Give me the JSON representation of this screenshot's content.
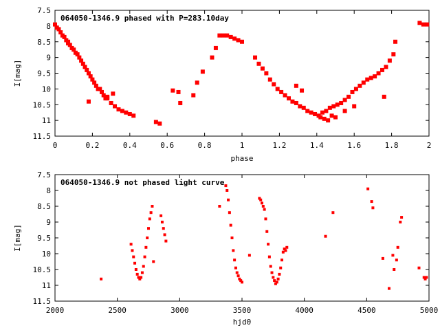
{
  "chart_data": [
    {
      "type": "scatter",
      "title": "064050-1346.9 phased with P=283.10day",
      "xlabel": "phase",
      "ylabel": "I[mag]",
      "xlim": [
        0,
        2
      ],
      "ylim": [
        11.5,
        7.5
      ],
      "y_reversed": true,
      "grid": false,
      "legend": "none",
      "marker_color": "#ff0000",
      "x_ticks": [
        "0",
        "0.2",
        "0.4",
        "0.6",
        "0.8",
        "1",
        "1.2",
        "1.4",
        "1.6",
        "1.8",
        "2"
      ],
      "y_ticks": [
        "7.5",
        "8",
        "8.5",
        "9",
        "9.5",
        "10",
        "10.5",
        "11",
        "11.5"
      ],
      "series": [
        {
          "x": [
            0.0,
            0.01,
            0.02,
            0.03,
            0.04,
            0.05,
            0.06,
            0.07,
            0.08,
            0.09,
            0.1,
            0.11,
            0.12,
            0.13,
            0.14,
            0.15,
            0.16,
            0.17,
            0.18,
            0.19,
            0.2,
            0.21,
            0.22,
            0.23,
            0.24,
            0.25,
            0.26,
            0.27,
            0.28,
            0.3,
            0.32,
            0.34,
            0.36,
            0.38,
            0.4,
            0.42,
            0.07,
            0.18,
            0.28,
            0.31,
            0.54,
            0.56,
            0.63,
            0.66,
            0.67,
            0.74,
            0.76,
            0.79,
            0.84,
            0.86,
            0.88,
            0.9,
            0.92,
            0.94,
            0.96,
            0.98,
            1.0,
            1.07,
            1.09,
            1.11,
            1.13,
            1.15,
            1.17,
            1.19,
            1.21,
            1.23,
            1.25,
            1.27,
            1.29,
            1.31,
            1.33,
            1.35,
            1.37,
            1.39,
            1.41,
            1.43,
            1.45,
            1.47,
            1.49,
            1.51,
            1.53,
            1.55,
            1.57,
            1.59,
            1.61,
            1.63,
            1.65,
            1.67,
            1.69,
            1.71,
            1.73,
            1.75,
            1.77,
            1.79,
            1.81,
            1.29,
            1.32,
            1.42,
            1.44,
            1.46,
            1.48,
            1.5,
            1.55,
            1.6,
            1.76,
            1.82,
            1.95,
            1.97,
            1.99
          ],
          "y": [
            7.95,
            8.05,
            8.1,
            8.2,
            8.3,
            8.35,
            8.45,
            8.5,
            8.6,
            8.7,
            8.75,
            8.85,
            8.9,
            9.0,
            9.1,
            9.2,
            9.3,
            9.4,
            9.5,
            9.6,
            9.7,
            9.8,
            9.9,
            10.0,
            10.0,
            10.1,
            10.2,
            10.3,
            10.3,
            10.45,
            10.55,
            10.65,
            10.7,
            10.75,
            10.8,
            10.85,
            8.55,
            10.4,
            10.25,
            10.15,
            11.05,
            11.1,
            10.05,
            10.1,
            10.45,
            10.2,
            9.8,
            9.45,
            9.0,
            8.7,
            8.3,
            8.3,
            8.3,
            8.35,
            8.4,
            8.45,
            8.5,
            9.0,
            9.2,
            9.35,
            9.5,
            9.7,
            9.85,
            10.0,
            10.1,
            10.2,
            10.3,
            10.4,
            10.45,
            10.55,
            10.6,
            10.7,
            10.75,
            10.8,
            10.85,
            10.75,
            10.7,
            10.6,
            10.55,
            10.5,
            10.45,
            10.35,
            10.25,
            10.1,
            10.0,
            9.9,
            9.8,
            9.7,
            9.65,
            9.6,
            9.5,
            9.4,
            9.3,
            9.1,
            8.9,
            9.9,
            10.05,
            10.9,
            10.95,
            11.0,
            10.85,
            10.9,
            10.7,
            10.55,
            10.25,
            8.5,
            7.9,
            7.95,
            7.95
          ]
        }
      ]
    },
    {
      "type": "scatter",
      "title": "064050-1346.9 not phased light curve",
      "xlabel": "hjd0",
      "ylabel": "I[mag]",
      "xlim": [
        2000,
        5000
      ],
      "ylim": [
        11.5,
        7.5
      ],
      "y_reversed": true,
      "grid": false,
      "legend": "none",
      "marker_color": "#ff0000",
      "x_ticks": [
        "2000",
        "2500",
        "3000",
        "3500",
        "4000",
        "4500",
        "5000"
      ],
      "y_ticks": [
        "7.5",
        "8",
        "8.5",
        "9",
        "9.5",
        "10",
        "10.5",
        "11",
        "11.5"
      ],
      "series": [
        {
          "x": [
            2370,
            2610,
            2620,
            2630,
            2640,
            2650,
            2660,
            2670,
            2680,
            2690,
            2700,
            2710,
            2720,
            2730,
            2740,
            2750,
            2760,
            2770,
            2780,
            2790,
            2850,
            2860,
            2870,
            2880,
            2890,
            3320,
            3370,
            3380,
            3390,
            3400,
            3410,
            3420,
            3430,
            3440,
            3450,
            3460,
            3470,
            3480,
            3490,
            3500,
            3560,
            3640,
            3650,
            3660,
            3670,
            3680,
            3690,
            3700,
            3710,
            3720,
            3730,
            3740,
            3750,
            3760,
            3770,
            3780,
            3790,
            3800,
            3810,
            3820,
            3830,
            3840,
            3850,
            3860,
            4170,
            4230,
            4510,
            4540,
            4550,
            4630,
            4680,
            4710,
            4720,
            4740,
            4750,
            4770,
            4780,
            4920,
            4960,
            4970,
            4980
          ],
          "y": [
            10.8,
            9.7,
            9.9,
            10.1,
            10.3,
            10.5,
            10.65,
            10.75,
            10.8,
            10.75,
            10.6,
            10.4,
            10.1,
            9.8,
            9.5,
            9.2,
            8.9,
            8.7,
            8.5,
            10.25,
            8.8,
            9.0,
            9.2,
            9.4,
            9.6,
            8.5,
            7.85,
            8.0,
            8.3,
            8.7,
            9.1,
            9.5,
            9.9,
            10.2,
            10.45,
            10.6,
            10.7,
            10.8,
            10.85,
            10.9,
            10.05,
            8.25,
            8.3,
            8.4,
            8.5,
            8.6,
            8.9,
            9.3,
            9.7,
            10.1,
            10.4,
            10.6,
            10.75,
            10.85,
            10.95,
            10.9,
            10.8,
            10.65,
            10.45,
            10.2,
            9.95,
            9.85,
            9.9,
            9.8,
            9.45,
            8.7,
            7.95,
            8.35,
            8.55,
            10.15,
            11.1,
            10.05,
            10.5,
            10.2,
            9.8,
            9.0,
            8.85,
            10.45,
            10.75,
            10.8,
            10.75
          ]
        }
      ]
    }
  ]
}
